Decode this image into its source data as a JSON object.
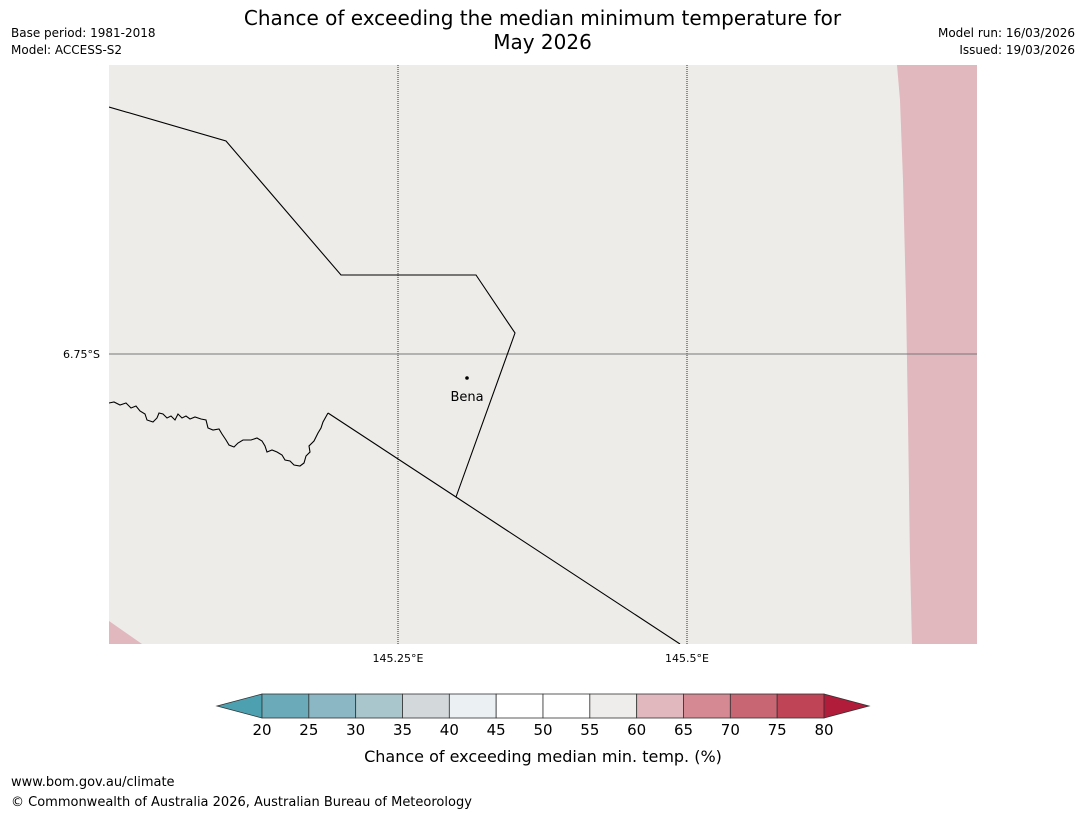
{
  "title_line1": "Chance of exceeding the median minimum temperature for",
  "title_line2": "May 2026",
  "base_period": "Base period: 1981-2018",
  "model": "Model: ACCESS-S2",
  "model_run": "Model run: 16/03/2026",
  "issued": "Issued: 19/03/2026",
  "map": {
    "lat_label": "6.75°S",
    "lon_labels": [
      "145.25°E",
      "145.5°E"
    ],
    "place_name": "Bena",
    "background_color": "#eeece9",
    "shade_color": "#e0b8bd"
  },
  "colorbar": {
    "ticks": [
      "20",
      "25",
      "30",
      "35",
      "40",
      "45",
      "50",
      "55",
      "60",
      "65",
      "70",
      "75",
      "80"
    ],
    "under_color": "#4ca0b0",
    "over_color": "#b01c3a",
    "colors": [
      "#6aaab9",
      "#8bb6c3",
      "#a8c6cc",
      "#d3d9db",
      "#ebf0f2",
      "#ffffff",
      "#ffffff",
      "#efedeb",
      "#e1b8bd",
      "#d58a93",
      "#c86773",
      "#bf4556"
    ],
    "label": "Chance of exceeding median min. temp. (%)"
  },
  "footer_url": "www.bom.gov.au/climate",
  "footer_copyright": "© Commonwealth of Australia 2026, Australian Bureau of Meteorology"
}
